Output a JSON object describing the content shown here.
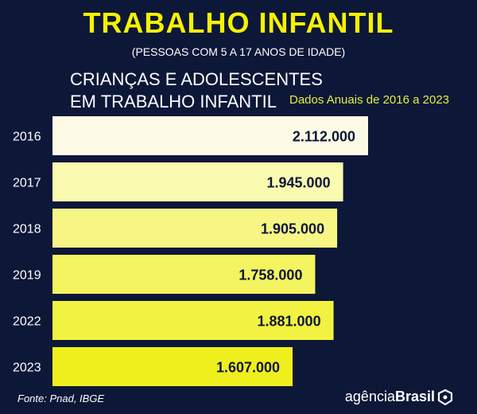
{
  "title": "TRABALHO INFANTIL",
  "subtitle": "(PESSOAS COM 5 A 17 ANOS DE IDADE)",
  "heading_line1": "CRIANÇAS E ADOLESCENTES",
  "heading_line2": "EM TRABALHO INFANTIL",
  "period": "Dados Anuais de 2016 a 2023",
  "source": "Fonte:  Pnad, IBGE",
  "brand": {
    "light": "agência",
    "bold": "Brasil",
    "icon": "agencia-brasil-logo-icon"
  },
  "colors": {
    "background": "#0d1738",
    "title": "#f5f200",
    "bars": [
      "#fdfbe6",
      "#fafab0",
      "#f7f685",
      "#f4f360",
      "#f2f240",
      "#f0ef1e"
    ]
  },
  "chart_data": {
    "type": "bar",
    "orientation": "horizontal",
    "categories": [
      "2016",
      "2017",
      "2018",
      "2019",
      "2022",
      "2023"
    ],
    "values": [
      2112000,
      1945000,
      1905000,
      1758000,
      1881000,
      1607000
    ],
    "value_labels": [
      "2.112.000",
      "1.945.000",
      "1.905.000",
      "1.758.000",
      "1.881.000",
      "1.607.000"
    ],
    "xlim": [
      0,
      2112000
    ],
    "grid": false,
    "legend": "none"
  }
}
